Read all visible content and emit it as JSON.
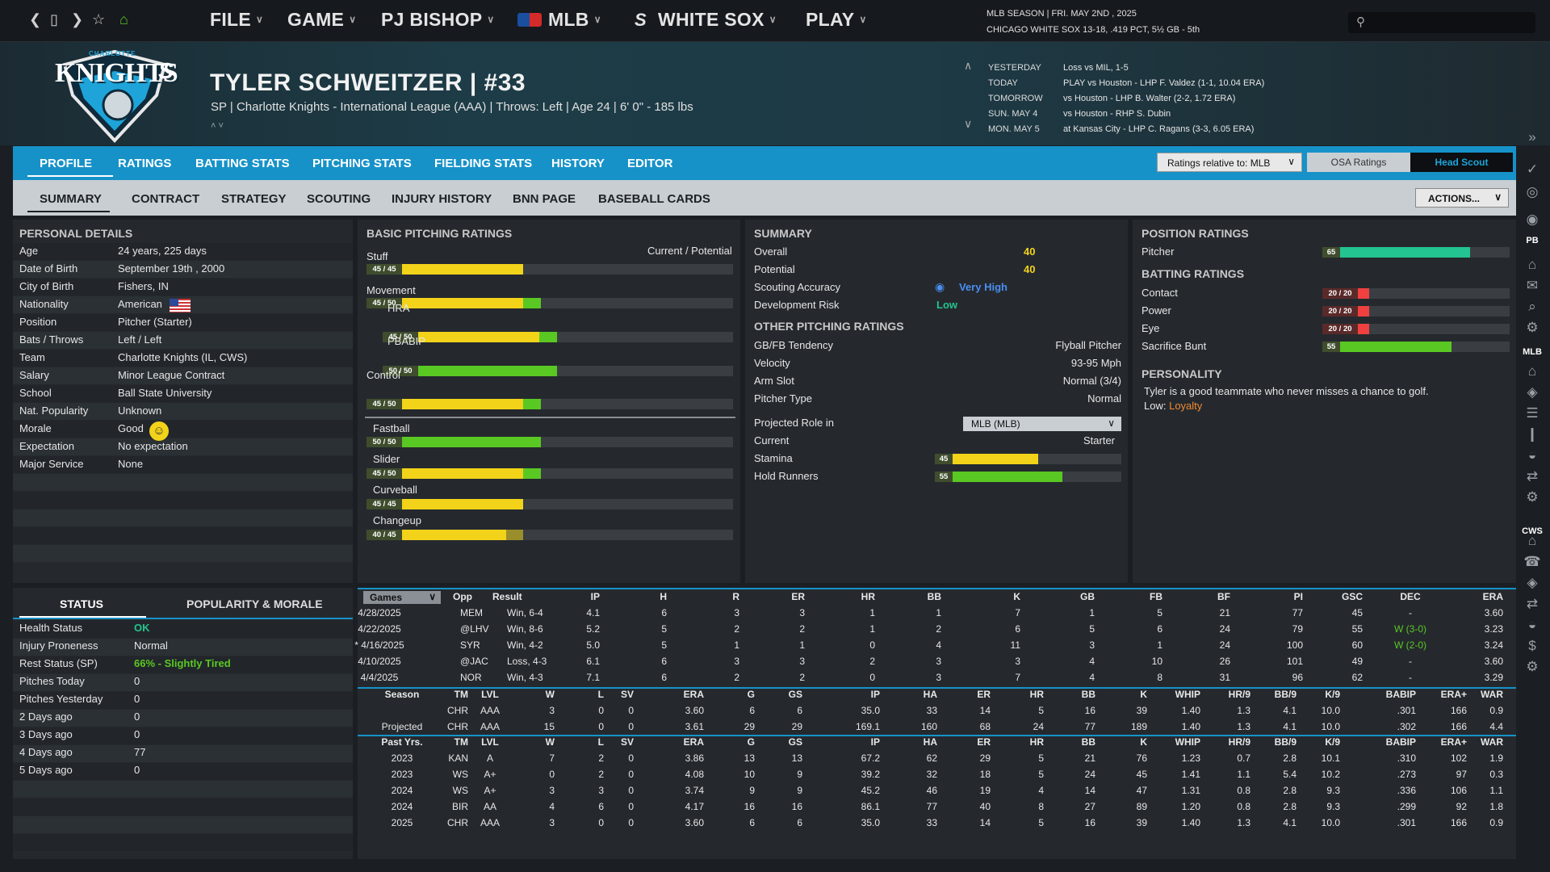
{
  "nav": {
    "menus": [
      "FILE",
      "GAME",
      "PJ BISHOP",
      "MLB",
      "WHITE SOX",
      "PLAY"
    ]
  },
  "season": {
    "line1": "MLB SEASON  |  FRI. MAY 2ND , 2025",
    "line2": "CHICAGO WHITE SOX  13-18, .419 PCT, 5½ GB - 5th"
  },
  "player": {
    "name": "TYLER SCHWEITZER  |  #33",
    "sub": "SP | Charlotte Knights - International League (AAA)  |  Throws: Left  |  Age 24  |  6' 0\"  - 185 lbs",
    "logo_text": "KNIGHTS",
    "logo_top": "CHARLOTTE"
  },
  "schedule": [
    [
      "YESTERDAY",
      "Loss vs MIL, 1-5"
    ],
    [
      "TODAY",
      "PLAY vs Houston - LHP F. Valdez (1-1, 10.04 ERA)"
    ],
    [
      "TOMORROW",
      "vs Houston - LHP B. Walter (2-2, 1.72 ERA)"
    ],
    [
      "SUN. MAY 4",
      "vs Houston - RHP S. Dubin"
    ],
    [
      "MON. MAY 5",
      "at Kansas City - LHP C. Ragans (3-3, 6.05 ERA)"
    ]
  ],
  "tabs1": [
    "PROFILE",
    "RATINGS",
    "BATTING STATS",
    "PITCHING STATS",
    "FIELDING STATS",
    "HISTORY",
    "EDITOR"
  ],
  "ratings_select": "Ratings relative to: MLB",
  "osa": "OSA Ratings",
  "headscout": "Head Scout",
  "tabs2": [
    "SUMMARY",
    "CONTRACT",
    "STRATEGY",
    "SCOUTING",
    "INJURY HISTORY",
    "BNN PAGE",
    "BASEBALL CARDS"
  ],
  "actions": "ACTIONS...",
  "personal": {
    "title": "PERSONAL DETAILS",
    "rows": [
      [
        "Age",
        "24 years, 225 days"
      ],
      [
        "Date of Birth",
        "September 19th , 2000"
      ],
      [
        "City of Birth",
        "Fishers, IN"
      ],
      [
        "Nationality",
        "American"
      ],
      [
        "Position",
        "Pitcher (Starter)"
      ],
      [
        "Bats / Throws",
        "Left / Left"
      ],
      [
        "Team",
        "Charlotte Knights (IL, CWS)"
      ],
      [
        "Salary",
        "Minor League Contract"
      ],
      [
        "School",
        "Ball State University"
      ],
      [
        "Nat. Popularity",
        "Unknown"
      ],
      [
        "Morale",
        "Good"
      ],
      [
        "Expectation",
        "No expectation"
      ],
      [
        "Major Service",
        "None"
      ]
    ]
  },
  "pitching": {
    "title": "BASIC PITCHING RATINGS",
    "cur_pot": "Current / Potential",
    "bars": [
      {
        "label": "Stuff",
        "val": "45 / 45",
        "cur": 45,
        "pot": 45,
        "indent": 0
      },
      {
        "label": "Movement",
        "val": "45 / 50",
        "cur": 45,
        "pot": 50,
        "indent": 0
      },
      {
        "label": "HRA",
        "val": "45 / 50",
        "cur": 45,
        "pot": 50,
        "indent": 1
      },
      {
        "label": "PBABIP",
        "val": "50 / 50",
        "cur": 50,
        "pot": 50,
        "indent": 1
      },
      {
        "label": "Control",
        "val": "45 / 50",
        "cur": 45,
        "pot": 50,
        "indent": 0
      },
      {
        "label": "Fastball",
        "val": "50 / 50",
        "cur": 50,
        "pot": 50,
        "indent": 0
      },
      {
        "label": "Slider",
        "val": "45 / 50",
        "cur": 45,
        "pot": 50,
        "indent": 0
      },
      {
        "label": "Curveball",
        "val": "45 / 45",
        "cur": 45,
        "pot": 45,
        "indent": 0
      },
      {
        "label": "Changeup",
        "val": "40 / 45",
        "cur": 40,
        "pot": 45,
        "indent": 0
      }
    ]
  },
  "summary": {
    "title": "SUMMARY",
    "rows": [
      [
        "Overall",
        "40"
      ],
      [
        "Potential",
        "40"
      ],
      [
        "Scouting Accuracy",
        "Very High"
      ],
      [
        "Development Risk",
        "Low"
      ]
    ]
  },
  "other": {
    "title": "OTHER PITCHING RATINGS",
    "rows": [
      [
        "GB/FB Tendency",
        "Flyball Pitcher"
      ],
      [
        "Velocity",
        "93-95 Mph"
      ],
      [
        "Arm Slot",
        "Normal (3/4)"
      ],
      [
        "Pitcher Type",
        "Normal"
      ]
    ],
    "role_label": "Projected Role in",
    "role_select": "MLB (MLB)",
    "current_label": "Current",
    "current_val": "Starter",
    "stamina": {
      "label": "Stamina",
      "val": "45"
    },
    "hold": {
      "label": "Hold Runners",
      "val": "55"
    }
  },
  "position": {
    "title": "POSITION RATINGS",
    "label": "Pitcher",
    "val": "65"
  },
  "batting": {
    "title": "BATTING RATINGS",
    "rows": [
      {
        "label": "Contact",
        "val": "20 / 20",
        "cur": 20
      },
      {
        "label": "Power",
        "val": "20 / 20",
        "cur": 20
      },
      {
        "label": "Eye",
        "val": "20 / 20",
        "cur": 20
      },
      {
        "label": "Sacrifice Bunt",
        "val": "55",
        "cur": 55
      }
    ]
  },
  "personality": {
    "title": "PERSONALITY",
    "text": "Tyler is a good teammate who never misses a chance to golf.",
    "low_label": "Low:",
    "low_val": "Loyalty"
  },
  "status": {
    "tab1": "STATUS",
    "tab2": "POPULARITY & MORALE",
    "rows": [
      [
        "Health Status",
        "OK"
      ],
      [
        "Injury Proneness",
        "Normal"
      ],
      [
        "Rest Status (SP)",
        "66% - Slightly Tired"
      ],
      [
        "Pitches Today",
        "0"
      ],
      [
        "Pitches Yesterday",
        "0"
      ],
      [
        "2 Days ago",
        "0"
      ],
      [
        "3 Days ago",
        "0"
      ],
      [
        "4 Days ago",
        "77"
      ],
      [
        "5 Days ago",
        "0"
      ]
    ]
  },
  "games": {
    "select": "Games",
    "headers": [
      "Opp",
      "Result",
      "IP",
      "H",
      "R",
      "ER",
      "HR",
      "BB",
      "K",
      "GB",
      "FB",
      "BF",
      "PI",
      "GSC",
      "DEC",
      "ERA"
    ],
    "rows": [
      [
        "4/28/2025",
        "MEM",
        "Win, 6-4",
        "4.1",
        "6",
        "3",
        "3",
        "1",
        "1",
        "7",
        "1",
        "5",
        "21",
        "77",
        "45",
        "-",
        "3.60"
      ],
      [
        "4/22/2025",
        "@LHV",
        "Win, 8-6",
        "5.2",
        "5",
        "2",
        "2",
        "1",
        "2",
        "6",
        "5",
        "6",
        "24",
        "79",
        "55",
        "W (3-0)",
        "3.23"
      ],
      [
        "* 4/16/2025",
        "SYR",
        "Win, 4-2",
        "5.0",
        "5",
        "1",
        "1",
        "0",
        "4",
        "11",
        "3",
        "1",
        "24",
        "100",
        "60",
        "W (2-0)",
        "3.24"
      ],
      [
        "4/10/2025",
        "@JAC",
        "Loss, 4-3",
        "6.1",
        "6",
        "3",
        "3",
        "2",
        "3",
        "3",
        "4",
        "10",
        "26",
        "101",
        "49",
        "-",
        "3.60"
      ],
      [
        "4/4/2025",
        "NOR",
        "Win, 4-3",
        "7.1",
        "6",
        "2",
        "2",
        "0",
        "3",
        "7",
        "4",
        "8",
        "31",
        "96",
        "62",
        "-",
        "3.29"
      ]
    ]
  },
  "season_tbl": {
    "headers": [
      "Season",
      "TM",
      "LVL",
      "W",
      "L",
      "SV",
      "ERA",
      "G",
      "GS",
      "IP",
      "HA",
      "ER",
      "HR",
      "BB",
      "K",
      "WHIP",
      "HR/9",
      "BB/9",
      "K/9",
      "BABIP",
      "ERA+",
      "WAR"
    ],
    "rows": [
      [
        "",
        "CHR",
        "AAA",
        "3",
        "0",
        "0",
        "3.60",
        "6",
        "6",
        "35.0",
        "33",
        "14",
        "5",
        "16",
        "39",
        "1.40",
        "1.3",
        "4.1",
        "10.0",
        ".301",
        "166",
        "0.9"
      ],
      [
        "Projected",
        "CHR",
        "AAA",
        "15",
        "0",
        "0",
        "3.61",
        "29",
        "29",
        "169.1",
        "160",
        "68",
        "24",
        "77",
        "189",
        "1.40",
        "1.3",
        "4.1",
        "10.0",
        ".302",
        "166",
        "4.4"
      ]
    ]
  },
  "past_tbl": {
    "headers": [
      "Past Yrs.",
      "TM",
      "LVL",
      "W",
      "L",
      "SV",
      "ERA",
      "G",
      "GS",
      "IP",
      "HA",
      "ER",
      "HR",
      "BB",
      "K",
      "WHIP",
      "HR/9",
      "BB/9",
      "K/9",
      "BABIP",
      "ERA+",
      "WAR"
    ],
    "rows": [
      [
        "2023",
        "KAN",
        "A",
        "7",
        "2",
        "0",
        "3.86",
        "13",
        "13",
        "67.2",
        "62",
        "29",
        "5",
        "21",
        "76",
        "1.23",
        "0.7",
        "2.8",
        "10.1",
        ".310",
        "102",
        "1.9"
      ],
      [
        "2023",
        "WS",
        "A+",
        "0",
        "2",
        "0",
        "4.08",
        "10",
        "9",
        "39.2",
        "32",
        "18",
        "5",
        "24",
        "45",
        "1.41",
        "1.1",
        "5.4",
        "10.2",
        ".273",
        "97",
        "0.3"
      ],
      [
        "2024",
        "WS",
        "A+",
        "3",
        "3",
        "0",
        "3.74",
        "9",
        "9",
        "45.2",
        "46",
        "19",
        "4",
        "14",
        "47",
        "1.31",
        "0.8",
        "2.8",
        "9.3",
        ".336",
        "106",
        "1.1"
      ],
      [
        "2024",
        "BIR",
        "AA",
        "4",
        "6",
        "0",
        "4.17",
        "16",
        "16",
        "86.1",
        "77",
        "40",
        "8",
        "27",
        "89",
        "1.20",
        "0.8",
        "2.8",
        "9.3",
        ".299",
        "92",
        "1.8"
      ],
      [
        "2025",
        "CHR",
        "AAA",
        "3",
        "0",
        "0",
        "3.60",
        "6",
        "6",
        "35.0",
        "33",
        "14",
        "5",
        "16",
        "39",
        "1.40",
        "1.3",
        "4.1",
        "10.0",
        ".301",
        "166",
        "0.9"
      ]
    ]
  },
  "sidebar": {
    "labels": [
      "PB",
      "MLB",
      "CWS"
    ]
  },
  "colors": {
    "accent": "#1692c8",
    "yellow": "#f2d31a",
    "green": "#5ac823",
    "teal": "#23c48f",
    "red": "#f04040"
  }
}
